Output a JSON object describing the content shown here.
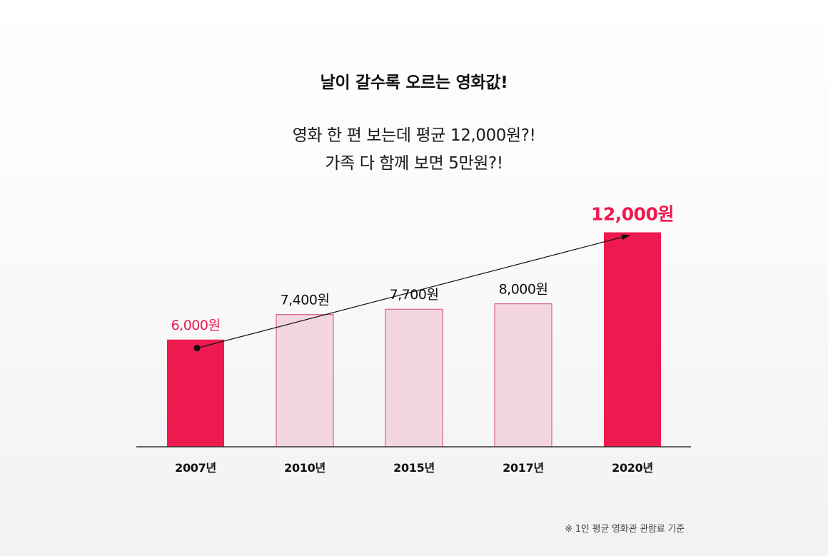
{
  "header": {
    "title": "날이 갈수록 오르는 영화값!",
    "subtitle_line1": "영화 한 편 보는데 평균 12,000원?!",
    "subtitle_line2": "가족 다 함께 보면 5만원?!"
  },
  "footnote": "※ 1인 평균 영화관 관람료 기준",
  "colors": {
    "highlight": "#ee1a4f",
    "bar_light": "#f4d7de",
    "bar_light_border": "#d6456a",
    "axis": "#333333",
    "text": "#111111"
  },
  "chart_data": {
    "type": "bar",
    "categories": [
      "2007년",
      "2010년",
      "2015년",
      "2017년",
      "2020년"
    ],
    "values": [
      6000,
      7400,
      7700,
      8000,
      12000
    ],
    "value_labels": [
      "6,000원",
      "7,400원",
      "7,700원",
      "8,000원",
      "12,000원"
    ],
    "highlighted": [
      true,
      false,
      false,
      false,
      true
    ],
    "ylim": [
      0,
      12500
    ],
    "grid": false,
    "legend": "none",
    "annotation": "trend arrow from 2007 to 2020"
  }
}
